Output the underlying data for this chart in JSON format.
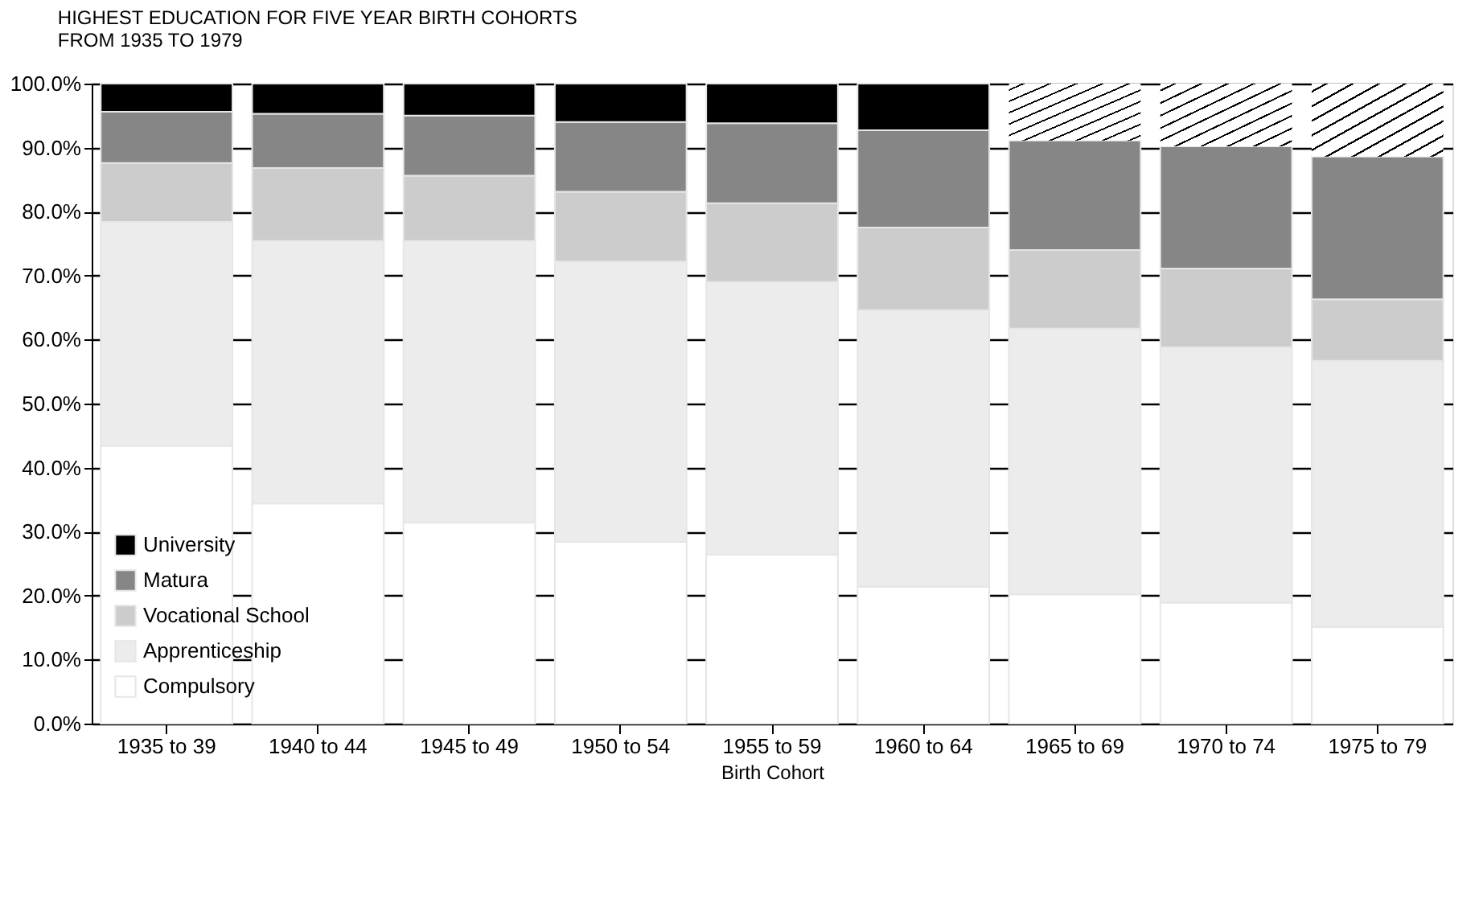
{
  "chart_data": {
    "type": "bar",
    "stacked": true,
    "title": "HIGHEST EDUCATION FOR FIVE YEAR BIRTH COHORTS\nFROM 1935 TO 1979",
    "xlabel": "Birth Cohort",
    "categories": [
      "1935 to 39",
      "1940 to 44",
      "1945 to 49",
      "1950 to 54",
      "1955 to 59",
      "1960 to 64",
      "1965 to 69",
      "1970 to 74",
      "1975 to 79"
    ],
    "series": [
      {
        "name": "Compulsory",
        "color": "#ffffff",
        "values": [
          43.4,
          34.4,
          31.4,
          28.4,
          26.4,
          21.4,
          20.2,
          18.9,
          15.1
        ]
      },
      {
        "name": "Apprenticeship",
        "color": "#ececec",
        "values": [
          35.0,
          41.0,
          44.0,
          43.8,
          42.6,
          43.2,
          41.5,
          39.9,
          41.6
        ]
      },
      {
        "name": "Vocational School",
        "color": "#cccccc",
        "values": [
          9.2,
          11.4,
          10.2,
          10.9,
          12.3,
          12.9,
          12.3,
          12.3,
          9.6
        ]
      },
      {
        "name": "Matura",
        "color": "#868686",
        "values": [
          8.0,
          8.5,
          9.4,
          10.9,
          12.5,
          15.2,
          17.1,
          19.1,
          22.3
        ]
      },
      {
        "name": "University",
        "color": "#000000",
        "values": [
          4.4,
          4.7,
          5.0,
          6.0,
          6.2,
          7.3,
          null,
          null,
          null
        ]
      },
      {
        "color": "#ffffff",
        "values": [
          null,
          null,
          null,
          null,
          null,
          null,
          8.9,
          9.8,
          11.4
        ]
      }
    ],
    "ylim": [
      0,
      100
    ],
    "yticks": [
      {
        "value": 0,
        "label": "0.0%"
      },
      {
        "value": 10,
        "label": "10.0%"
      },
      {
        "value": 20,
        "label": "20.0%"
      },
      {
        "value": 30,
        "label": "30.0%"
      },
      {
        "value": 40,
        "label": "40.0%"
      },
      {
        "value": 50,
        "label": "50.0%"
      },
      {
        "value": 60,
        "label": "60.0%"
      },
      {
        "value": 70,
        "label": "70.0%"
      },
      {
        "value": 80,
        "label": "80.0%"
      },
      {
        "value": 90,
        "label": "90.0%"
      },
      {
        "value": 100,
        "label": "100.0%"
      }
    ],
    "grid": "y",
    "legend": "bottom left"
  }
}
